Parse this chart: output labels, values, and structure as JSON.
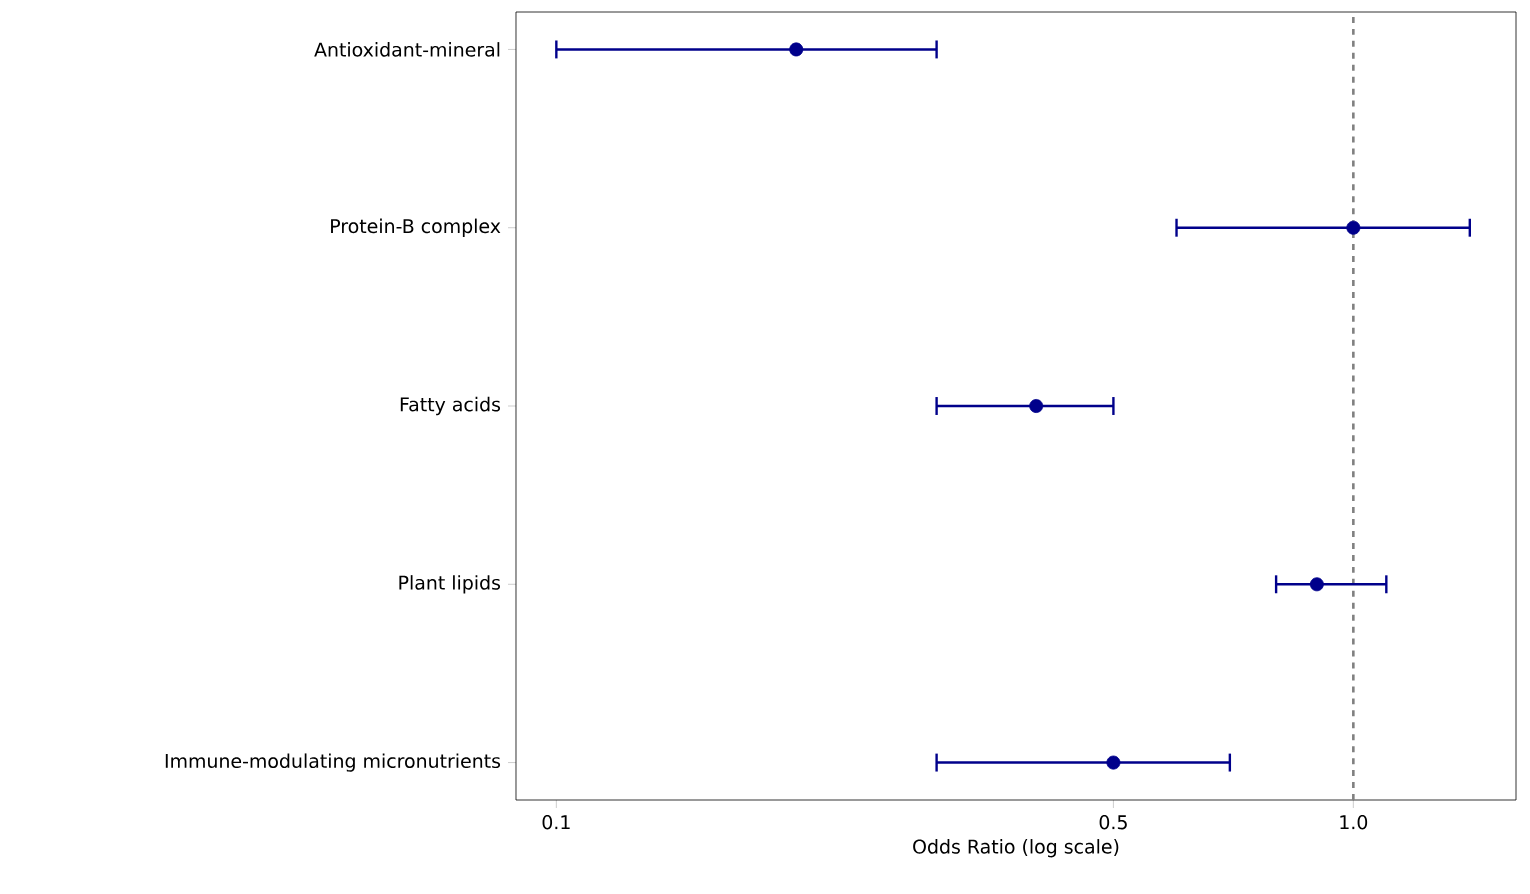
{
  "chart_data": {
    "type": "scatter",
    "orientation": "horizontal",
    "xlabel": "Odds Ratio (log scale)",
    "categories": [
      "Antioxidant-mineral",
      "Protein-B complex",
      "Fatty acids",
      "Plant lipids",
      "Immune-modulating micronutrients"
    ],
    "values": [
      0.2,
      1.0,
      0.4,
      0.9,
      0.5
    ],
    "errors": [
      [
        0.1,
        0.3
      ],
      [
        0.6,
        1.4
      ],
      [
        0.3,
        0.5
      ],
      [
        0.8,
        1.1
      ],
      [
        0.3,
        0.7
      ]
    ],
    "color": "#00008b",
    "marker": "circle",
    "log": "x",
    "xlim": [
      0.089,
      1.6
    ],
    "xticks": [
      0.1,
      0.5,
      {
        "value": 1.0,
        "label": "1.0"
      }
    ],
    "ref_lines": [
      {
        "axis": "x",
        "value": 1.0,
        "color": "#808080",
        "line_style": "dashed"
      }
    ],
    "grid": false
  }
}
